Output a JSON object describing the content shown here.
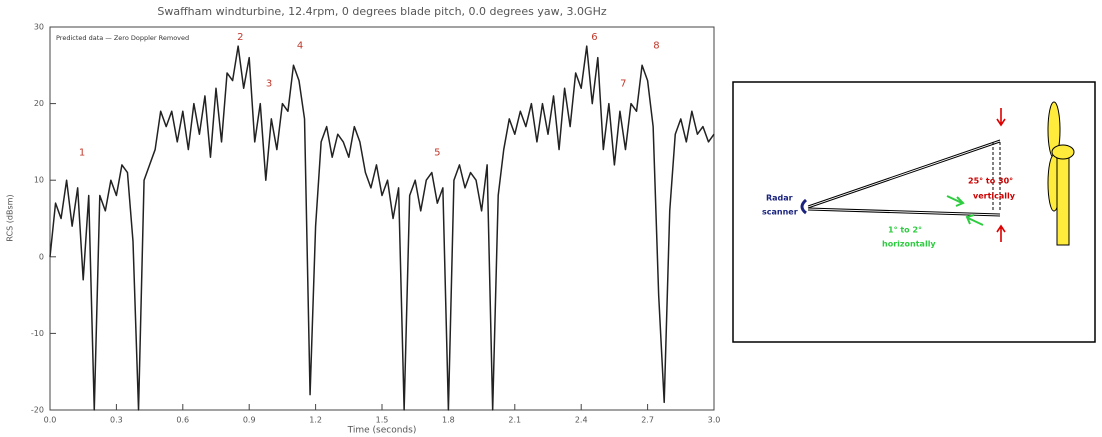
{
  "chart_data": {
    "type": "line",
    "title": "Swaffham windturbine, 12.4rpm, 0 degrees blade pitch, 0.0 degrees yaw, 3.0GHz",
    "legend_text": "Predicted data — Zero Doppler Removed",
    "xlabel": "Time (seconds)",
    "ylabel": "RCS (dBsm)",
    "xlim": [
      0,
      3
    ],
    "ylim": [
      -20,
      30
    ],
    "xticks": [
      {
        "value": 0,
        "label": "0.0"
      },
      0.3,
      0.6,
      0.9,
      1.2,
      1.5,
      1.8,
      2.1,
      2.4,
      2.7,
      {
        "value": 3,
        "label": "3.0"
      }
    ],
    "yticks": [
      -20,
      -10,
      0,
      10,
      20,
      30
    ],
    "x": [
      0,
      0.025,
      0.05,
      0.075,
      0.1,
      0.125,
      0.15,
      0.175,
      0.2,
      0.225,
      0.25,
      0.275,
      0.3,
      0.325,
      0.35,
      0.375,
      0.4,
      0.425,
      0.45,
      0.475,
      0.5,
      0.525,
      0.55,
      0.575,
      0.6,
      0.625,
      0.65,
      0.675,
      0.7,
      0.725,
      0.75,
      0.775,
      0.8,
      0.825,
      0.85,
      0.875,
      0.9,
      0.925,
      0.95,
      0.975,
      1,
      1.025,
      1.05,
      1.075,
      1.1,
      1.125,
      1.15,
      1.175,
      1.2,
      1.225,
      1.25,
      1.275,
      1.3,
      1.325,
      1.35,
      1.375,
      1.4,
      1.425,
      1.45,
      1.475,
      1.5,
      1.525,
      1.55,
      1.575,
      1.6,
      1.625,
      1.65,
      1.675,
      1.7,
      1.725,
      1.75,
      1.775,
      1.8,
      1.825,
      1.85,
      1.875,
      1.9,
      1.925,
      1.95,
      1.975,
      2,
      2.025,
      2.05,
      2.075,
      2.1,
      2.125,
      2.15,
      2.175,
      2.2,
      2.225,
      2.25,
      2.275,
      2.3,
      2.325,
      2.35,
      2.375,
      2.4,
      2.425,
      2.45,
      2.475,
      2.5,
      2.525,
      2.55,
      2.575,
      2.6,
      2.625,
      2.65,
      2.675,
      2.7,
      2.725,
      2.75,
      2.775,
      2.8,
      2.825,
      2.85,
      2.875,
      2.9,
      2.925,
      2.95,
      2.975,
      3
    ],
    "series": [
      {
        "color": "#222222",
        "values": [
          0,
          7,
          5,
          10,
          4,
          9,
          -3,
          8,
          -20,
          8,
          6,
          10,
          8,
          12,
          11,
          2,
          -20,
          10,
          12,
          14,
          19,
          17,
          19,
          15,
          19,
          14,
          20,
          16,
          21,
          13,
          22,
          15,
          24,
          23,
          27.5,
          22,
          26,
          15,
          20,
          10,
          18,
          14,
          20,
          19,
          25,
          23,
          18,
          -18,
          4,
          15,
          17,
          13,
          16,
          15,
          13,
          17,
          15,
          11,
          9,
          12,
          8,
          10,
          5,
          9,
          -20,
          8,
          10,
          6,
          10,
          11,
          7,
          9,
          -20,
          10,
          12,
          9,
          11,
          10,
          6,
          12,
          -20,
          8,
          14,
          18,
          16,
          19,
          17,
          20,
          15,
          20,
          16,
          21,
          14,
          22,
          17,
          24,
          22,
          27.5,
          20,
          26,
          14,
          20,
          12,
          19,
          14,
          20,
          19,
          25,
          23,
          17,
          -5,
          -19,
          6,
          16,
          18,
          15,
          19,
          16,
          17,
          15,
          16
        ]
      }
    ],
    "annotations": [
      {
        "text": "1",
        "x": 0.145,
        "y": 13.6
      },
      {
        "text": "2",
        "x": 0.86,
        "y": 28.7
      },
      {
        "text": "3",
        "x": 0.99,
        "y": 22.6
      },
      {
        "text": "4",
        "x": 1.13,
        "y": 27.6
      },
      {
        "text": "5",
        "x": 1.75,
        "y": 13.6
      },
      {
        "text": "6",
        "x": 2.46,
        "y": 28.7
      },
      {
        "text": "7",
        "x": 2.59,
        "y": 22.6
      },
      {
        "text": "8",
        "x": 2.74,
        "y": 27.6
      }
    ],
    "annotation_color": "#c0392b"
  },
  "diagram": {
    "radar": [
      "Radar",
      "scanner"
    ],
    "vertical": [
      "25° to 30°",
      "vertically"
    ],
    "horizontal": [
      "1° to 2°",
      "horizontally"
    ]
  }
}
